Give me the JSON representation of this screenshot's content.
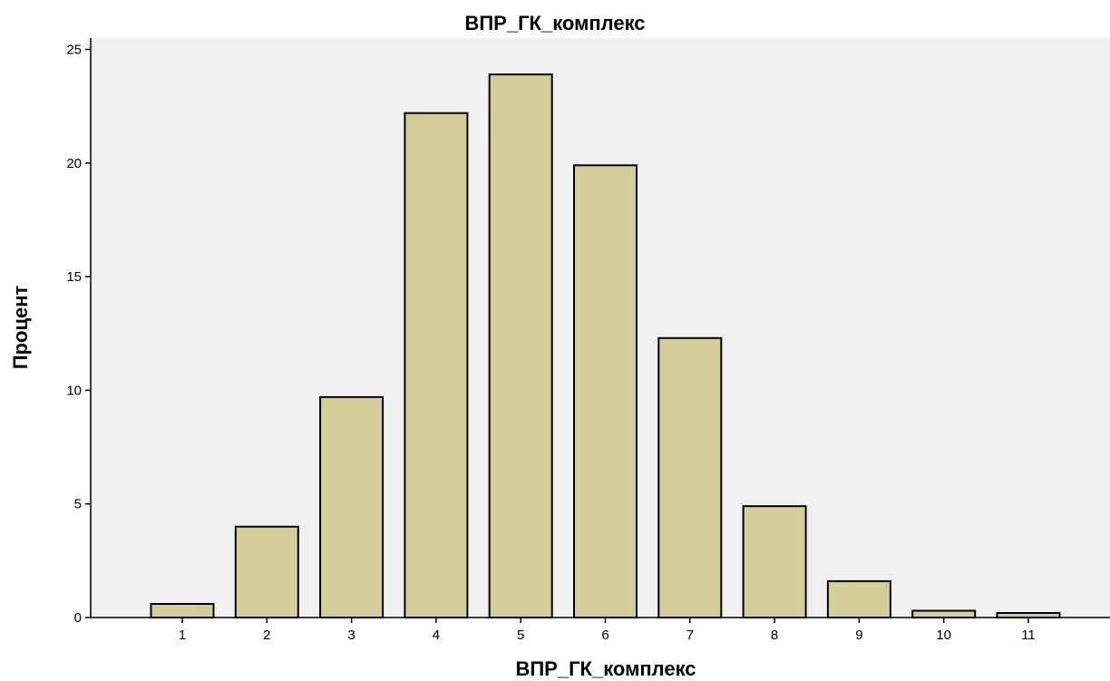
{
  "chart_data": {
    "type": "bar",
    "title": "ВПР_ГК_комплекс",
    "xlabel": "ВПР_ГК_комплекс",
    "ylabel": "Процент",
    "categories": [
      "1",
      "2",
      "3",
      "4",
      "5",
      "6",
      "7",
      "8",
      "9",
      "10",
      "11"
    ],
    "values": [
      0.6,
      4.0,
      9.7,
      22.2,
      23.9,
      19.9,
      12.3,
      4.9,
      1.6,
      0.3,
      0.2
    ],
    "yticks": [
      "0",
      "5",
      "10",
      "15",
      "20",
      "25"
    ],
    "ylim": [
      0,
      25.5
    ],
    "grid": false,
    "legend": "none"
  },
  "colors": {
    "plot_background": "#f0f0f0",
    "bar_fill": "#d3ce97",
    "bar_stroke": "#000000",
    "axis": "#000000"
  }
}
